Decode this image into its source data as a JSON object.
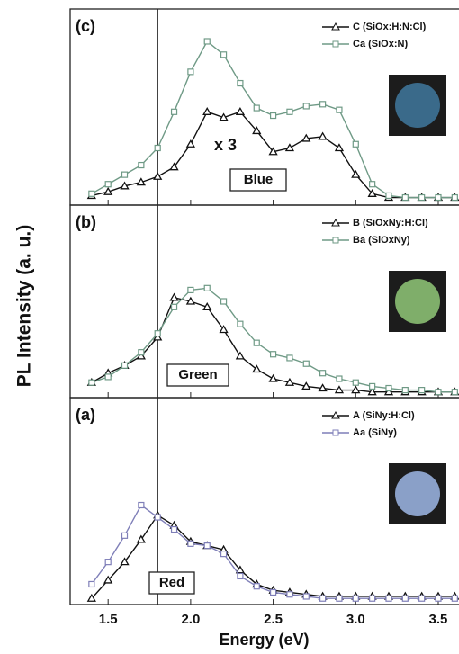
{
  "chart_data": [
    {
      "type": "line",
      "panel_label": "(c)",
      "annotation": "x 3",
      "label_box": "Blue",
      "vline": 1.8,
      "xlim": [
        1.27,
        3.62
      ],
      "ylim": [
        -3,
        100
      ],
      "x": [
        1.4,
        1.5,
        1.6,
        1.7,
        1.8,
        1.9,
        2.0,
        2.1,
        2.2,
        2.3,
        2.4,
        2.5,
        2.6,
        2.7,
        2.8,
        2.9,
        3.0,
        3.1,
        3.2,
        3.3,
        3.4,
        3.5,
        3.6
      ],
      "series": [
        {
          "name": "C (SiOx:H:N:Cl)",
          "color": "#111111",
          "marker": "triangle",
          "values": [
            2,
            4,
            7,
            9,
            12,
            17,
            29,
            46,
            43,
            46,
            36,
            25,
            27,
            32,
            33,
            27,
            13,
            3,
            1,
            1,
            1,
            1,
            1
          ]
        },
        {
          "name": "Ca (SiOx:N)",
          "color": "#6f9a86",
          "marker": "square",
          "values": [
            3,
            8,
            13,
            18,
            27,
            46,
            67,
            83,
            76,
            61,
            48,
            44,
            46,
            49,
            50,
            47,
            29,
            8,
            2,
            1,
            1,
            1,
            1
          ]
        }
      ]
    },
    {
      "type": "line",
      "panel_label": "(b)",
      "label_box": "Green",
      "vline": 1.8,
      "ylabel": "PL Intensity (a. u.)",
      "xlim": [
        1.27,
        3.62
      ],
      "ylim": [
        -2,
        100
      ],
      "x": [
        1.4,
        1.5,
        1.6,
        1.7,
        1.8,
        1.9,
        2.0,
        2.1,
        2.2,
        2.3,
        2.4,
        2.5,
        2.6,
        2.7,
        2.8,
        2.9,
        3.0,
        3.1,
        3.2,
        3.3,
        3.4,
        3.5,
        3.6
      ],
      "series": [
        {
          "name": "B (SiOxNy:H:Cl)",
          "color": "#111111",
          "marker": "triangle",
          "values": [
            6,
            11,
            15,
            20,
            30,
            51,
            49,
            46,
            34,
            20,
            13,
            8,
            6,
            4,
            3,
            2,
            2,
            1,
            1,
            1,
            1,
            1,
            1
          ]
        },
        {
          "name": "Ba (SiOxNy)",
          "color": "#6f9a86",
          "marker": "square",
          "values": [
            6,
            9,
            15,
            22,
            32,
            46,
            55,
            56,
            49,
            37,
            27,
            21,
            19,
            16,
            11,
            8,
            6,
            4,
            3,
            2,
            2,
            1,
            1
          ]
        }
      ]
    },
    {
      "type": "line",
      "panel_label": "(a)",
      "label_box": "Red",
      "vline": 1.8,
      "xlabel": "Energy (eV)",
      "xlim": [
        1.27,
        3.62
      ],
      "ylim": [
        -2,
        100
      ],
      "xticks": [
        1.5,
        {
          "value": 2,
          "label": "2.0"
        },
        2.5,
        {
          "value": 3,
          "label": "3.0"
        },
        3.5
      ],
      "x": [
        1.4,
        1.5,
        1.6,
        1.7,
        1.8,
        1.9,
        2.0,
        2.1,
        2.2,
        2.3,
        2.4,
        2.5,
        2.6,
        2.7,
        2.8,
        2.9,
        3.0,
        3.1,
        3.2,
        3.3,
        3.4,
        3.5,
        3.6
      ],
      "series": [
        {
          "name": "A (SiNy:H:Cl)",
          "color": "#111111",
          "marker": "triangle",
          "values": [
            1,
            10,
            19,
            30,
            42,
            37,
            29,
            27,
            25,
            15,
            8,
            5,
            4,
            3,
            2,
            2,
            2,
            2,
            2,
            2,
            2,
            2,
            2
          ]
        },
        {
          "name": "Aa (SiNy)",
          "color": "#7f7fb8",
          "marker": "square",
          "values": [
            8,
            19,
            32,
            47,
            41,
            35,
            28,
            27,
            23,
            12,
            7,
            4,
            3,
            2,
            1,
            1,
            1,
            1,
            1,
            1,
            1,
            1,
            1
          ]
        }
      ]
    }
  ]
}
